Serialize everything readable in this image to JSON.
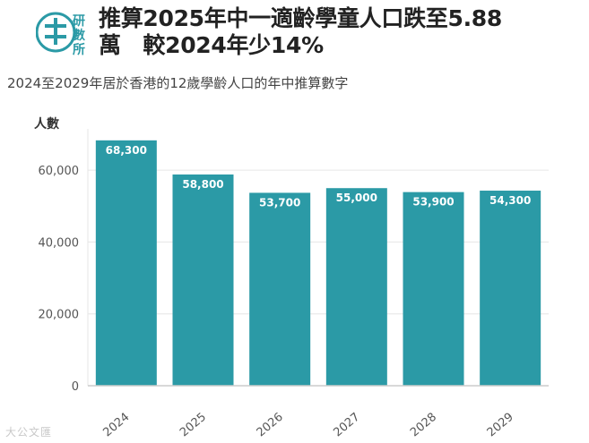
{
  "header": {
    "logo_text": "研數所",
    "title_line1": "推算2025年中一適齡學童人口跌至5.88",
    "title_line2": "萬　較2024年少14%",
    "subtitle": "2024至2029年居於香港的12歲學齡人口的年中推算數字"
  },
  "footer": {
    "watermark": "大公文匯"
  },
  "colors": {
    "bar": "#2b9aa6",
    "grid": "#e6e6e6",
    "axis": "#cccccc",
    "tick_text": "#555555",
    "label_text": "#ffffff"
  },
  "chart_data": {
    "type": "bar",
    "title": "推算2025年中一適齡學童人口跌至5.88萬　較2024年少14%",
    "subtitle": "2024至2029年居於香港的12歲學齡人口的年中推算數字",
    "xlabel": "",
    "ylabel": "人數",
    "categories": [
      "2024",
      "2025",
      "2026",
      "2027",
      "2028",
      "2029"
    ],
    "values": [
      68300,
      58800,
      53700,
      55000,
      53900,
      54300
    ],
    "data_labels": [
      "68,300",
      "58,800",
      "53,700",
      "55,000",
      "53,900",
      "54,300"
    ],
    "yticks": [
      0,
      20000,
      40000,
      60000
    ],
    "ytick_labels": [
      "0",
      "20,000",
      "40,000",
      "60,000"
    ],
    "ylim": [
      0,
      70000
    ],
    "grid": true
  }
}
